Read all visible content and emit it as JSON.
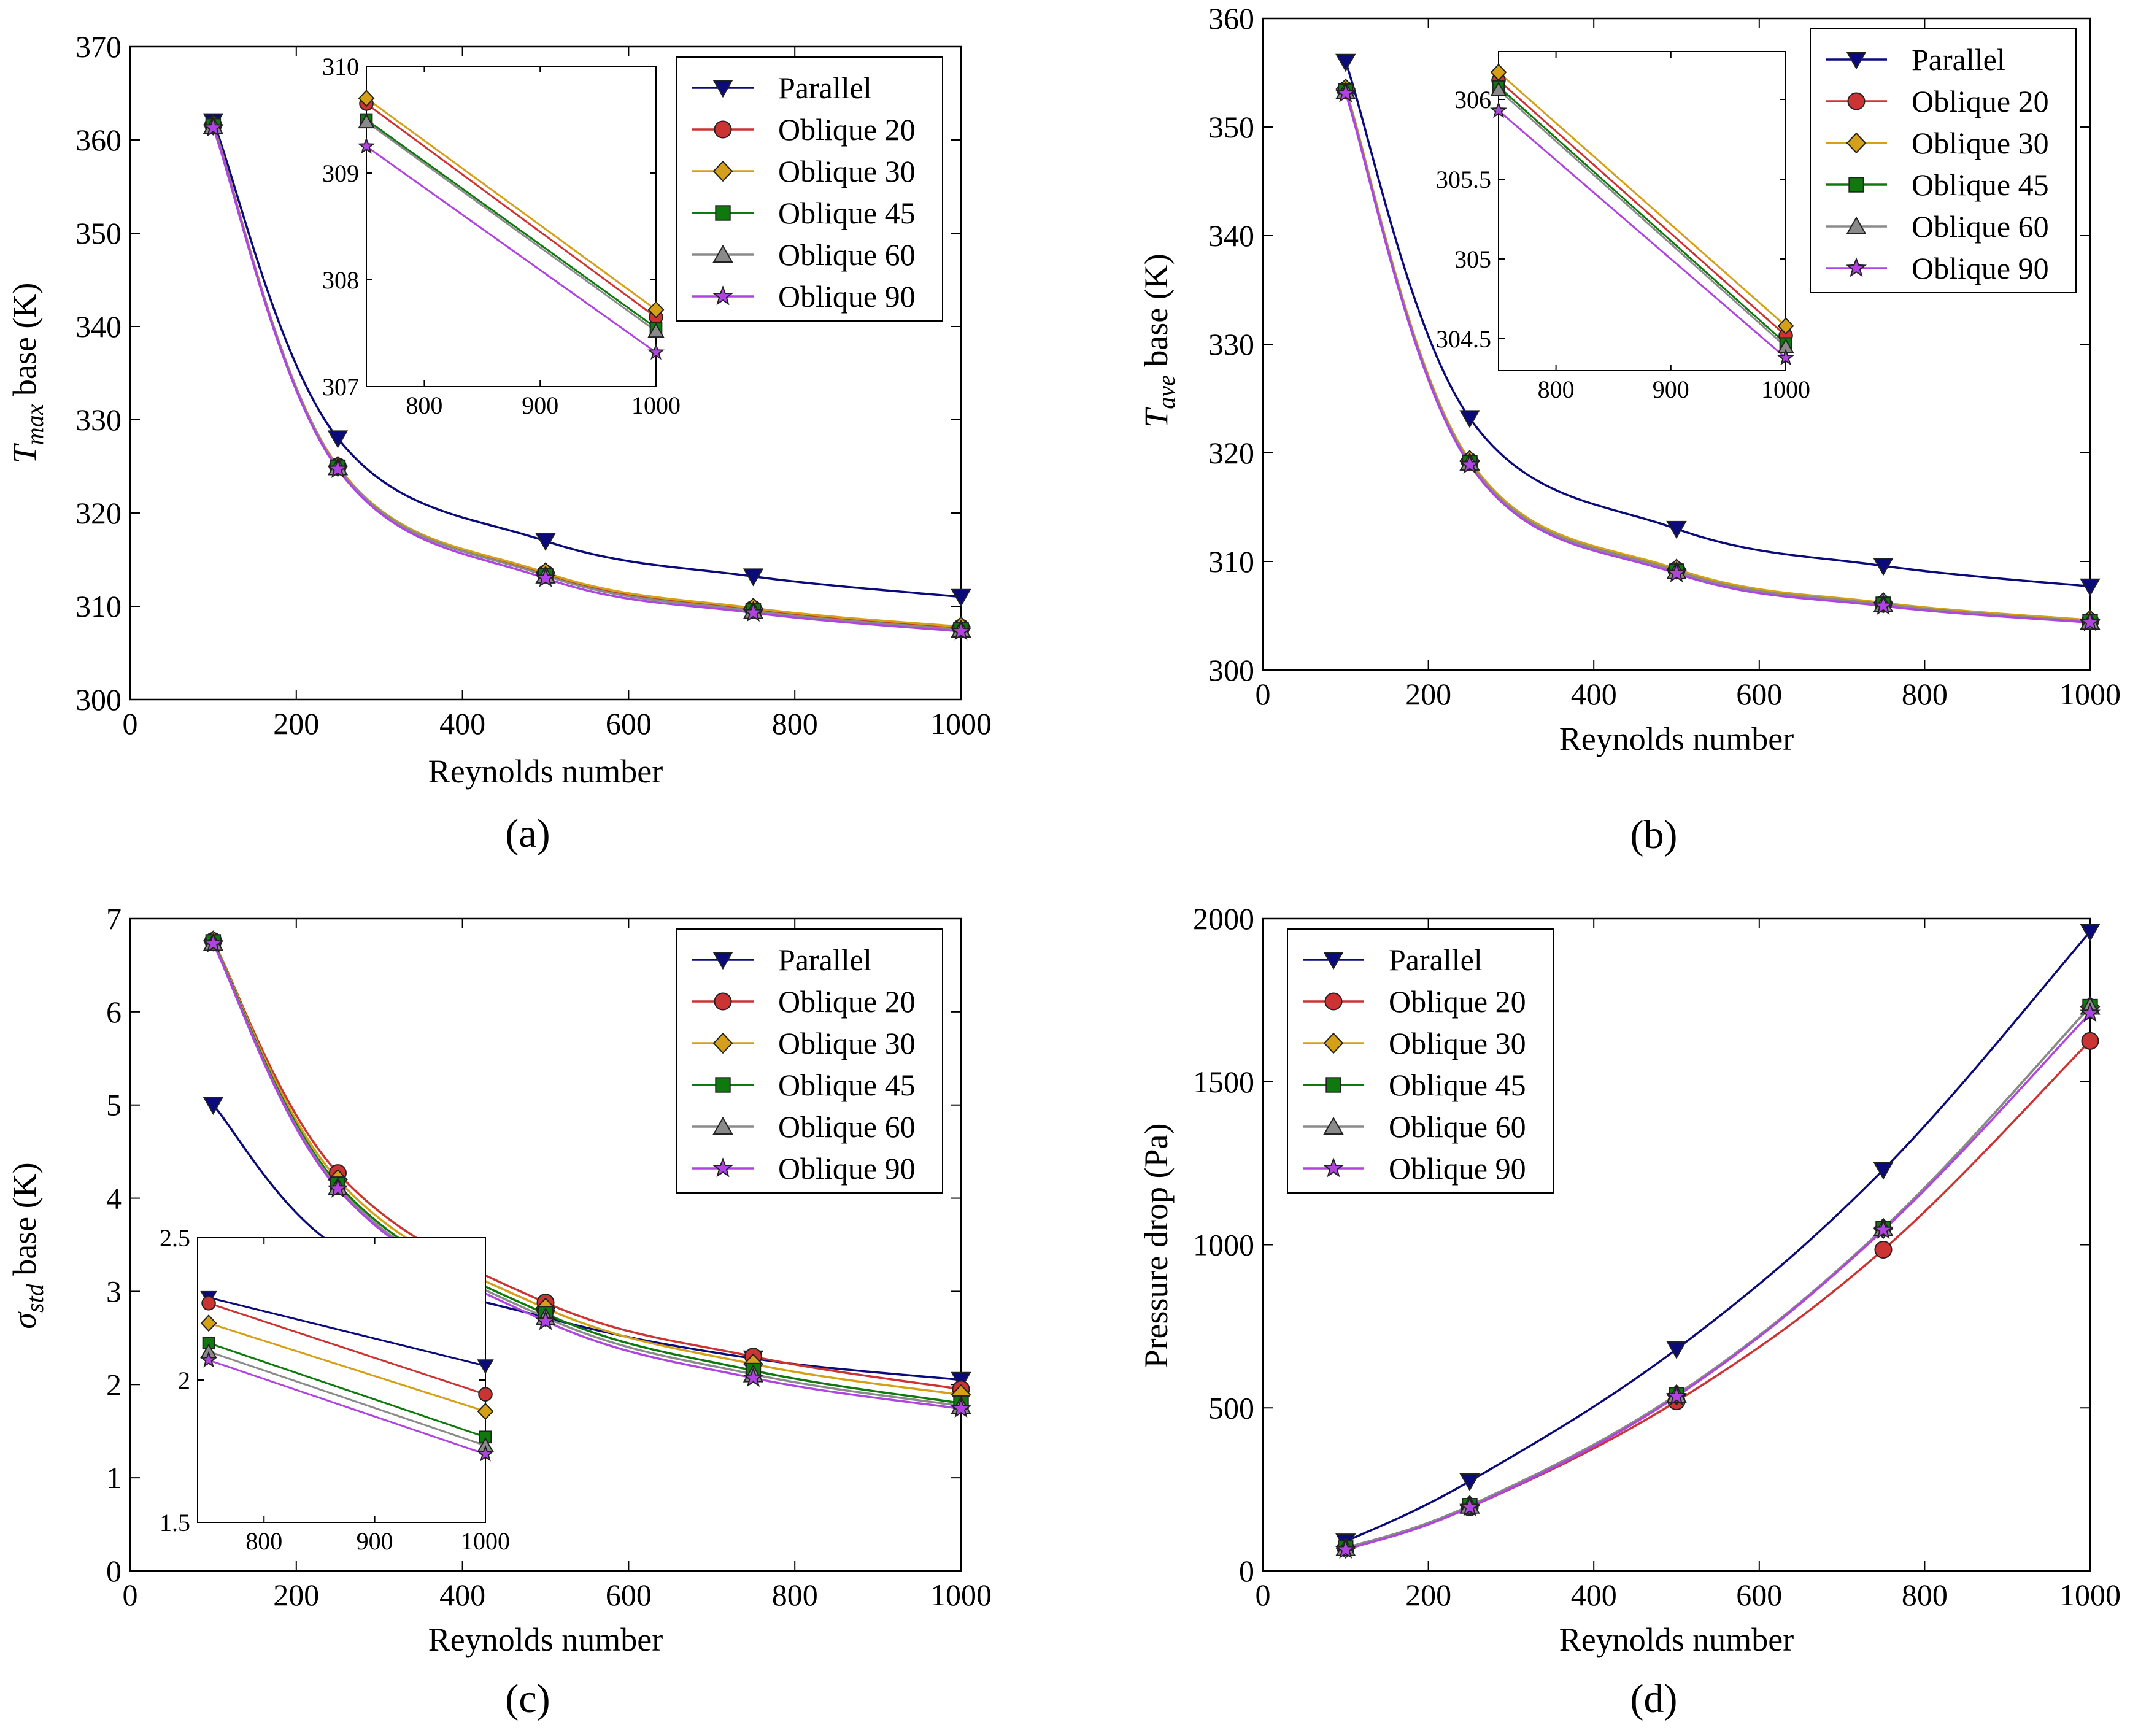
{
  "figure": {
    "series_styles": [
      {
        "name": "Parallel",
        "color": "#0a0a7a",
        "marker": "triangle-down"
      },
      {
        "name": "Oblique 20",
        "color": "#cc3333",
        "marker": "circle"
      },
      {
        "name": "Oblique 30",
        "color": "#d4a017",
        "marker": "diamond"
      },
      {
        "name": "Oblique 45",
        "color": "#0e7a0e",
        "marker": "square"
      },
      {
        "name": "Oblique 60",
        "color": "#8a8a8a",
        "marker": "triangle-up"
      },
      {
        "name": "Oblique 90",
        "color": "#b044e0",
        "marker": "star"
      }
    ]
  },
  "chart_data": [
    {
      "id": "a",
      "type": "line",
      "caption": "(a)",
      "xlabel": "Reynolds number",
      "ylabel_main": "T",
      "ylabel_sub": "max",
      "ylabel_rest": " base (K)",
      "xlim": [
        0,
        1000
      ],
      "ylim": [
        300,
        370
      ],
      "xticks": [
        "0",
        "200",
        "400",
        "600",
        "800",
        "1000"
      ],
      "yticks": [
        "300",
        "310",
        "320",
        "330",
        "340",
        "350",
        "360",
        "370"
      ],
      "legend": "top-right",
      "x": [
        100,
        250,
        500,
        750,
        1000
      ],
      "series": [
        {
          "name": "Parallel",
          "values": [
            362.0,
            328.0,
            317.0,
            313.2,
            311.0
          ]
        },
        {
          "name": "Oblique 20",
          "values": [
            361.6,
            325.0,
            313.5,
            309.7,
            307.7
          ]
        },
        {
          "name": "Oblique 30",
          "values": [
            361.6,
            325.0,
            313.6,
            309.8,
            307.8
          ]
        },
        {
          "name": "Oblique 45",
          "values": [
            361.5,
            324.9,
            313.3,
            309.5,
            307.5
          ]
        },
        {
          "name": "Oblique 60",
          "values": [
            361.5,
            324.9,
            313.3,
            309.5,
            307.5
          ]
        },
        {
          "name": "Oblique 90",
          "values": [
            361.3,
            324.7,
            313.0,
            309.3,
            307.3
          ]
        }
      ],
      "inset": {
        "xlim": [
          750,
          1000
        ],
        "ylim": [
          307,
          310
        ],
        "xticks": [
          "800",
          "900",
          "1000"
        ],
        "yticks": [
          "307",
          "308",
          "309",
          "310"
        ],
        "x": [
          750,
          1000
        ],
        "series": [
          {
            "name": "Oblique 20",
            "values": [
              309.65,
              307.65
            ]
          },
          {
            "name": "Oblique 30",
            "values": [
              309.7,
              307.72
            ]
          },
          {
            "name": "Oblique 45",
            "values": [
              309.5,
              307.55
            ]
          },
          {
            "name": "Oblique 60",
            "values": [
              309.48,
              307.52
            ]
          },
          {
            "name": "Oblique 90",
            "values": [
              309.25,
              307.32
            ]
          }
        ]
      }
    },
    {
      "id": "b",
      "type": "line",
      "caption": "(b)",
      "xlabel": "Reynolds number",
      "ylabel_main": "T",
      "ylabel_sub": "ave",
      "ylabel_rest": " base (K)",
      "xlim": [
        0,
        1000
      ],
      "ylim": [
        300,
        360
      ],
      "xticks": [
        "0",
        "200",
        "400",
        "600",
        "800",
        "1000"
      ],
      "yticks": [
        "300",
        "310",
        "320",
        "330",
        "340",
        "350",
        "360"
      ],
      "legend": "top-right",
      "x": [
        100,
        250,
        500,
        750,
        1000
      ],
      "series": [
        {
          "name": "Parallel",
          "values": [
            356.0,
            323.2,
            313.0,
            309.6,
            307.7
          ]
        },
        {
          "name": "Oblique 20",
          "values": [
            353.4,
            319.2,
            309.2,
            306.1,
            304.5
          ]
        },
        {
          "name": "Oblique 30",
          "values": [
            353.5,
            319.3,
            309.3,
            306.2,
            304.6
          ]
        },
        {
          "name": "Oblique 45",
          "values": [
            353.3,
            319.1,
            309.1,
            306.05,
            304.45
          ]
        },
        {
          "name": "Oblique 60",
          "values": [
            353.3,
            319.1,
            309.1,
            306.05,
            304.45
          ]
        },
        {
          "name": "Oblique 90",
          "values": [
            353.1,
            318.9,
            308.9,
            305.9,
            304.38
          ]
        }
      ],
      "inset": {
        "xlim": [
          750,
          1000
        ],
        "ylim": [
          304.3,
          306.3
        ],
        "xticks": [
          "800",
          "900",
          "1000"
        ],
        "yticks": [
          "304.5",
          "305",
          "305.5",
          "306"
        ],
        "x": [
          750,
          1000
        ],
        "series": [
          {
            "name": "Oblique 20",
            "values": [
              306.12,
              304.52
            ]
          },
          {
            "name": "Oblique 30",
            "values": [
              306.17,
              304.58
            ]
          },
          {
            "name": "Oblique 45",
            "values": [
              306.08,
              304.47
            ]
          },
          {
            "name": "Oblique 60",
            "values": [
              306.06,
              304.45
            ]
          },
          {
            "name": "Oblique 90",
            "values": [
              305.93,
              304.38
            ]
          }
        ]
      }
    },
    {
      "id": "c",
      "type": "line",
      "caption": "(c)",
      "xlabel": "Reynolds number",
      "ylabel_main": "σ",
      "ylabel_sub": "std",
      "ylabel_rest": " base (K)",
      "xlim": [
        0,
        1000
      ],
      "ylim": [
        0,
        7
      ],
      "xticks": [
        "0",
        "200",
        "400",
        "600",
        "800",
        "1000"
      ],
      "yticks": [
        "0",
        "1",
        "2",
        "3",
        "4",
        "5",
        "6",
        "7"
      ],
      "legend": "top-right",
      "x": [
        100,
        250,
        500,
        750,
        1000
      ],
      "series": [
        {
          "name": "Parallel",
          "values": [
            5.0,
            3.47,
            2.72,
            2.28,
            2.05
          ]
        },
        {
          "name": "Oblique 20",
          "values": [
            6.76,
            4.27,
            2.88,
            2.3,
            1.95
          ]
        },
        {
          "name": "Oblique 30",
          "values": [
            6.76,
            4.2,
            2.82,
            2.22,
            1.89
          ]
        },
        {
          "name": "Oblique 45",
          "values": [
            6.75,
            4.15,
            2.76,
            2.15,
            1.8
          ]
        },
        {
          "name": "Oblique 60",
          "values": [
            6.74,
            4.12,
            2.72,
            2.11,
            1.77
          ]
        },
        {
          "name": "Oblique 90",
          "values": [
            6.73,
            4.1,
            2.68,
            2.07,
            1.74
          ]
        }
      ],
      "inset": {
        "xlim": [
          740,
          1000
        ],
        "ylim": [
          1.5,
          2.5
        ],
        "xticks": [
          "800",
          "900",
          "1000"
        ],
        "yticks": [
          "1.5",
          "2",
          "2.5"
        ],
        "x": [
          750,
          1000
        ],
        "series": [
          {
            "name": "Parallel",
            "values": [
              2.29,
              2.05
            ]
          },
          {
            "name": "Oblique 20",
            "values": [
              2.27,
              1.95
            ]
          },
          {
            "name": "Oblique 30",
            "values": [
              2.2,
              1.89
            ]
          },
          {
            "name": "Oblique 45",
            "values": [
              2.13,
              1.8
            ]
          },
          {
            "name": "Oblique 60",
            "values": [
              2.1,
              1.77
            ]
          },
          {
            "name": "Oblique 90",
            "values": [
              2.07,
              1.74
            ]
          }
        ]
      }
    },
    {
      "id": "d",
      "type": "line",
      "caption": "(d)",
      "xlabel": "Reynolds number",
      "ylabel_main": "Pressure drop (Pa)",
      "ylabel_sub": "",
      "ylabel_rest": "",
      "xlim": [
        0,
        1000
      ],
      "ylim": [
        0,
        2000
      ],
      "xticks": [
        "0",
        "200",
        "400",
        "600",
        "800",
        "1000"
      ],
      "yticks": [
        "0",
        "500",
        "1000",
        "1500",
        "2000"
      ],
      "legend": "top-left",
      "x": [
        100,
        250,
        500,
        750,
        1000
      ],
      "series": [
        {
          "name": "Parallel",
          "values": [
            90,
            275,
            680,
            1230,
            1960
          ]
        },
        {
          "name": "Oblique 20",
          "values": [
            70,
            195,
            520,
            985,
            1625
          ]
        },
        {
          "name": "Oblique 30",
          "values": [
            70,
            200,
            540,
            1050,
            1730
          ]
        },
        {
          "name": "Oblique 45",
          "values": [
            70,
            200,
            540,
            1050,
            1730
          ]
        },
        {
          "name": "Oblique 60",
          "values": [
            70,
            200,
            540,
            1050,
            1730
          ]
        },
        {
          "name": "Oblique 90",
          "values": [
            65,
            195,
            535,
            1045,
            1710
          ]
        }
      ]
    }
  ]
}
